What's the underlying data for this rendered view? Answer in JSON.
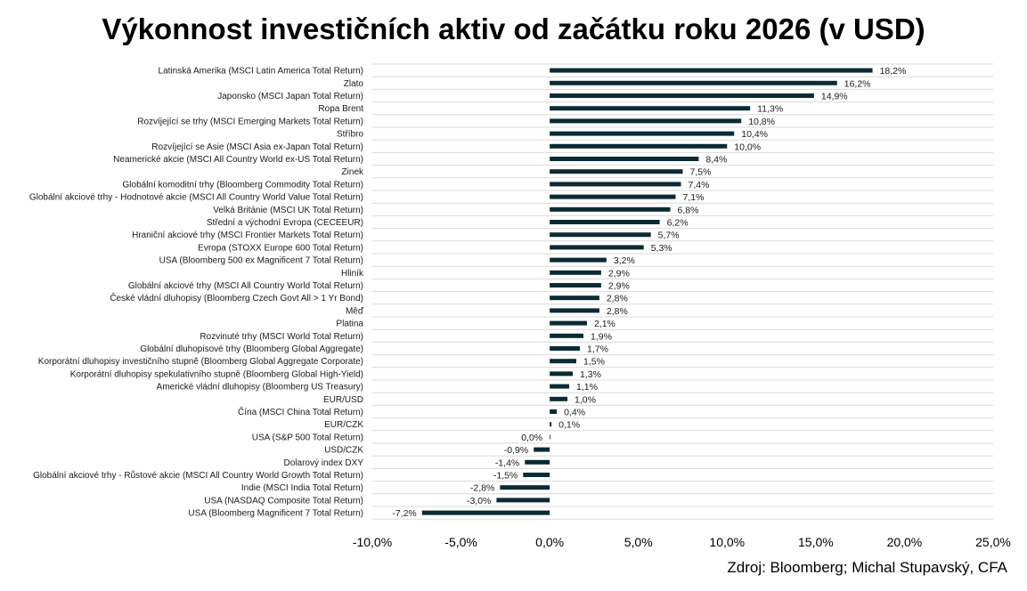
{
  "chart_data": {
    "type": "bar",
    "orientation": "horizontal",
    "title": "Výkonnost investičních aktiv od začátku roku 2026 (v USD)",
    "xlabel": "",
    "ylabel": "",
    "xlim": [
      -10,
      25
    ],
    "x_ticks": [
      -10,
      -5,
      0,
      5,
      10,
      15,
      20,
      25
    ],
    "x_tick_labels": [
      "-10,0%",
      "-5,0%",
      "0,0%",
      "5,0%",
      "10,0%",
      "15,0%",
      "20,0%",
      "25,0%"
    ],
    "grid": true,
    "bar_color": "#0b2a33",
    "categories": [
      "Latinská Amerika (MSCI Latin America Total Return)",
      "Zlato",
      "Japonsko (MSCI Japan Total Return)",
      "Ropa Brent",
      "Rozvíjející se trhy (MSCI Emerging Markets Total Return)",
      "Stříbro",
      "Rozvíjející se Asie (MSCI Asia ex-Japan Total Return)",
      "Neamerické akcie (MSCI All Country World ex-US Total Return)",
      "Zinek",
      "Globální komoditní trhy (Bloomberg Commodity Total Return)",
      "Globální akciové trhy - Hodnotové akcie (MSCI All Country World Value Total Return)",
      "Velká Británie (MSCI UK Total Return)",
      "Střední a východní Evropa (CECEEUR)",
      "Hraniční akciové trhy (MSCI Frontier Markets Total Return)",
      "Evropa (STOXX Europe 600 Total Return)",
      "USA (Bloomberg 500 ex Magnificent 7 Total Return)",
      "Hliník",
      "Globální akciové trhy (MSCI All Country World Total Return)",
      "České vládní dluhopisy (Bloomberg Czech Govt All > 1 Yr Bond)",
      "Měď",
      "Platina",
      "Rozvinuté trhy (MSCI World Total Return)",
      "Globální dluhopisové trhy (Bloomberg Global Aggregate)",
      "Korporátní dluhopisy investičního stupně (Bloomberg Global Aggregate Corporate)",
      "Korporátní dluhopisy spekulativního stupně (Bloomberg Global High-Yield)",
      "Americké vládní dluhopisy (Bloomberg US Treasury)",
      "EUR/USD",
      "Čína (MSCI China Total Return)",
      "EUR/CZK",
      "USA (S&P 500 Total Return)",
      "USD/CZK",
      "Dolarový index DXY",
      "Globální akciové trhy - Růstové akcie (MSCI All Country World Growth Total Return)",
      "Indie (MSCI India Total Return)",
      "USA (NASDAQ Composite Total Return)",
      "USA (Bloomberg Magnificent 7 Total Return)"
    ],
    "values": [
      18.2,
      16.2,
      14.9,
      11.3,
      10.8,
      10.4,
      10.0,
      8.4,
      7.5,
      7.4,
      7.1,
      6.8,
      6.2,
      5.7,
      5.3,
      3.2,
      2.9,
      2.9,
      2.8,
      2.8,
      2.1,
      1.9,
      1.7,
      1.5,
      1.3,
      1.1,
      1.0,
      0.4,
      0.1,
      0.0,
      -0.9,
      -1.4,
      -1.5,
      -2.8,
      -3.0,
      -7.2
    ],
    "value_labels": [
      "18,2%",
      "16,2%",
      "14,9%",
      "11,3%",
      "10,8%",
      "10,4%",
      "10,0%",
      "8,4%",
      "7,5%",
      "7,4%",
      "7,1%",
      "6,8%",
      "6,2%",
      "5,7%",
      "5,3%",
      "3,2%",
      "2,9%",
      "2,9%",
      "2,8%",
      "2,8%",
      "2,1%",
      "1,9%",
      "1,7%",
      "1,5%",
      "1,3%",
      "1,1%",
      "1,0%",
      "0,4%",
      "0,1%",
      "0,0%",
      "-0,9%",
      "-1,4%",
      "-1,5%",
      "-2,8%",
      "-3,0%",
      "-7,2%"
    ]
  },
  "source_note": "Zdroj: Bloomberg; Michal Stupavský, CFA"
}
